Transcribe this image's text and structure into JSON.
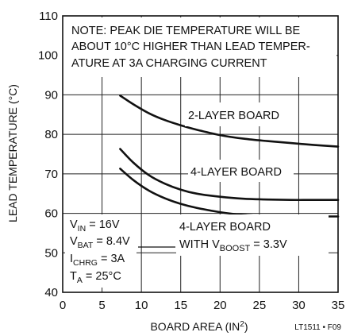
{
  "chart_data": {
    "type": "line",
    "xlabel_main": "BOARD AREA (IN",
    "xlabel_sup": "2",
    "xlabel_end": ")",
    "ylabel": "LEAD TEMPERATURE (°C)",
    "xlim": [
      0,
      35
    ],
    "ylim": [
      40,
      110
    ],
    "xticks": [
      0,
      5,
      10,
      15,
      20,
      25,
      30,
      35
    ],
    "yticks": [
      40,
      50,
      60,
      70,
      80,
      90,
      100,
      110
    ],
    "grid": true,
    "series": [
      {
        "name": "2-LAYER BOARD",
        "x": [
          7.3,
          9,
          11,
          13,
          15,
          17,
          20,
          23,
          26,
          29,
          32,
          35
        ],
        "y": [
          89.8,
          87.6,
          85.3,
          83.6,
          82.3,
          81.2,
          79.8,
          78.9,
          78.3,
          77.8,
          77.3,
          76.9
        ]
      },
      {
        "name": "4-LAYER BOARD",
        "x": [
          7.3,
          9,
          11,
          13,
          15,
          17,
          20,
          23,
          26,
          29,
          32,
          35
        ],
        "y": [
          76.3,
          72.8,
          69.6,
          67.5,
          66.0,
          65.0,
          64.2,
          63.7,
          63.5,
          63.4,
          63.4,
          63.4
        ]
      },
      {
        "name": "4-LAYER BOARD WITH VBOOST = 3.3V",
        "x": [
          7.3,
          9,
          11,
          13,
          15,
          17,
          20,
          23,
          26,
          29,
          32,
          35
        ],
        "y": [
          71.3,
          68.4,
          65.7,
          63.8,
          62.4,
          61.4,
          60.3,
          59.6,
          59.3,
          59.2,
          59.2,
          59.2
        ]
      }
    ],
    "note_lines": [
      "NOTE: PEAK DIE TEMPERATURE WILL BE",
      "ABOUT 10°C HIGHER THAN LEAD TEMPER-",
      "ATURE AT 3A CHARGING CURRENT"
    ],
    "labels": {
      "two_layer": "2-LAYER BOARD",
      "four_layer": "4-LAYER BOARD",
      "four_layer_boost_line1": "4-LAYER BOARD",
      "four_layer_boost_line2_pre": "WITH V",
      "four_layer_boost_sub": "BOOST",
      "four_layer_boost_post": " = 3.3V"
    },
    "conditions": [
      {
        "main": "V",
        "sub": "IN",
        "rest": " = 16V"
      },
      {
        "main": "V",
        "sub": "BAT",
        "rest": " = 8.4V"
      },
      {
        "main": "I",
        "sub": "CHRG",
        "rest": " = 3A"
      },
      {
        "main": "T",
        "sub": "A",
        "rest": " = 25°C"
      }
    ],
    "figure_id": "LT1511 • F09"
  }
}
